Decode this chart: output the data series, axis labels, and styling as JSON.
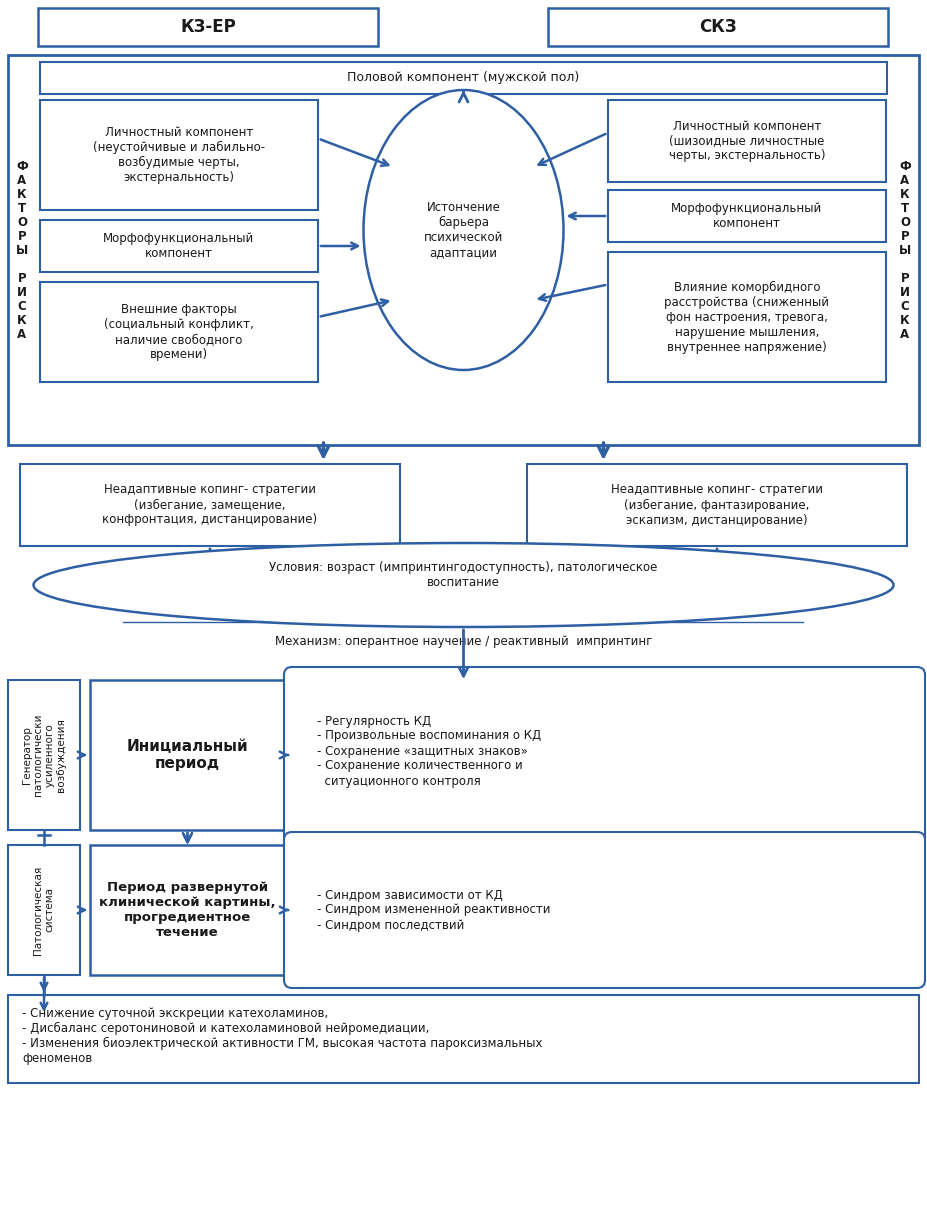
{
  "bg_color": "#ffffff",
  "border_color": "#2E5FA3",
  "text_color": "#1a1a1a",
  "arrow_color": "#2E5FA3",
  "title_kz": "КЗ-ЕР",
  "title_skz": "СКЗ",
  "polovoy": "Половой компонент (мужской пол)",
  "center_text": "Истончение\nбарьера\nпсихической\nадаптации",
  "left_box1": "Личностный компонент\n(неустойчивые и лабильно-\nвозбудимые черты,\nэкстернальность)",
  "left_box2": "Морфофункциональный\nкомпонент",
  "left_box3": "Внешние факторы\n(социальный конфликт,\nналичие свободного\nвремени)",
  "right_box1": "Личностный компонент\n(шизоидные личностные\nчерты, экстернальность)",
  "right_box2": "Морфофункциональный\nкомпонент",
  "right_box3": "Влияние коморбидного\nрасстройства (сниженный\nфон настроения, тревога,\nнарушение мышления,\nвнутреннее напряжение)",
  "coping_left": "Неадаптивные копинг- стратегии\n(избегание, замещение,\nконфронтация, дистанцирование)",
  "coping_right": "Неадаптивные копинг- стратегии\n(избегание, фантазирование,\nэскапизм, дистанцирование)",
  "conditions_text1": "Условия: возраст (импринтингодоступность), патологическое",
  "conditions_text2": "воспитание",
  "mechanism_text": "Механизм: оперантное научение / реактивный  импринтинг",
  "gen_text": "Генератор\nпатологически\nусиленного\nвозбуждения",
  "patol_sys_text": "Патологическая\nсистема",
  "initial_text": "Инициальный\nпериод",
  "razvern_text": "Период развернутой\nклинической картины,\nпрогредиентное\nтечение",
  "initial_right": "- Регулярность КД\n- Произвольные воспоминания о КД\n- Сохранение «защитных знаков»\n- Сохранение количественного и\n  ситуационного контроля",
  "razvern_right": "- Синдром зависимости от КД\n- Синдром измененной реактивности\n- Синдром последствий",
  "bottom_text": "- Снижение суточной экскреции катехоламинов,\n- Дисбаланс серотониновой и катехоламиновой нейромедиации,\n- Изменения биоэлектрической активности ГМ, высокая частота пароксизмальных\nфеноменов",
  "label_v": "Ф\nА\nК\nТ\nО\nР\nЫ\n \nР\nИ\nС\nК\nА"
}
